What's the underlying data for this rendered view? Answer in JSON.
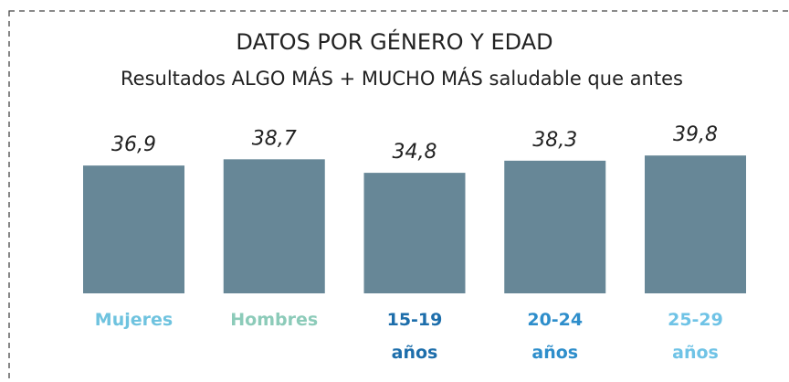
{
  "chart_data": {
    "type": "bar",
    "title": "DATOS POR GÉNERO Y EDAD",
    "subtitle": "Resultados ALGO MÁS + MUCHO MÁS  saludable que antes",
    "categories": [
      "Mujeres",
      "Hombres",
      "15-19\naños",
      "20-24\naños",
      "25-29\naños"
    ],
    "category_colors": [
      "#6fc3df",
      "#8ccbb9",
      "#1d6eab",
      "#2e8ecb",
      "#6fc3e6"
    ],
    "values": [
      36.9,
      38.7,
      34.8,
      38.3,
      39.8
    ],
    "value_labels": [
      "36,9",
      "38,7",
      "34,8",
      "38,3",
      "39,8"
    ],
    "color": "#678797"
  }
}
